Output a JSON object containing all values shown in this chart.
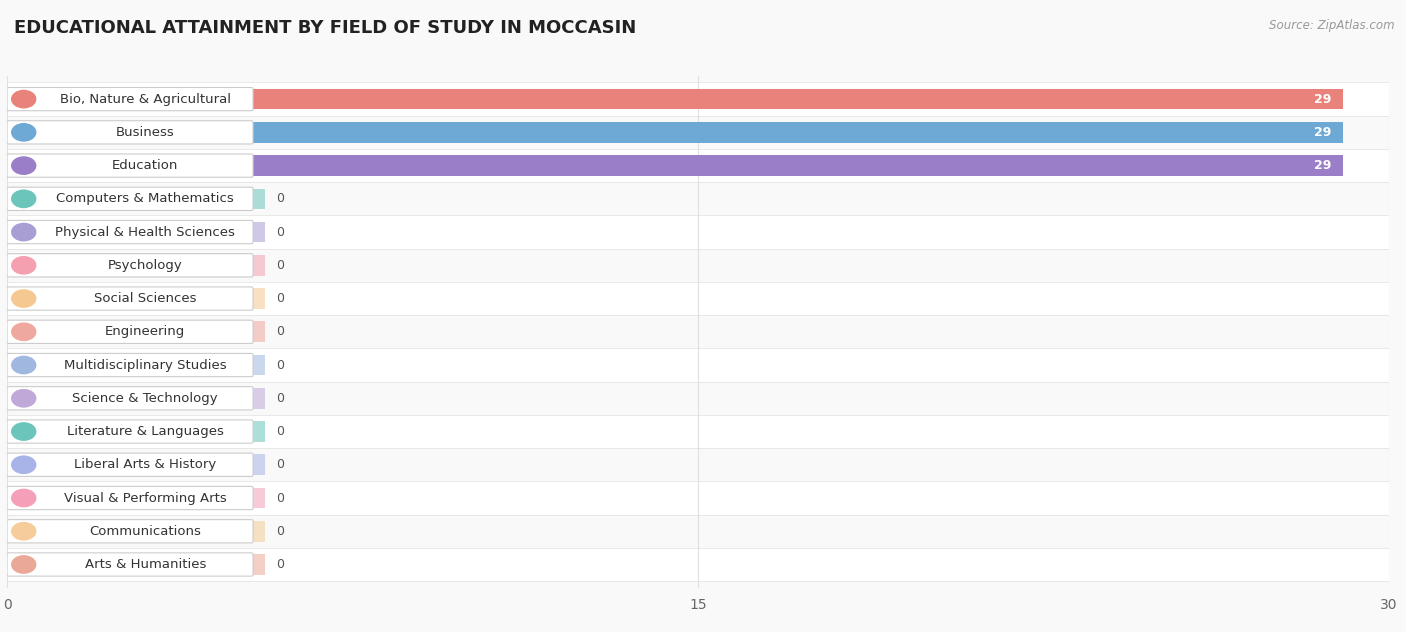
{
  "title": "EDUCATIONAL ATTAINMENT BY FIELD OF STUDY IN MOCCASIN",
  "source": "Source: ZipAtlas.com",
  "categories": [
    "Bio, Nature & Agricultural",
    "Business",
    "Education",
    "Computers & Mathematics",
    "Physical & Health Sciences",
    "Psychology",
    "Social Sciences",
    "Engineering",
    "Multidisciplinary Studies",
    "Science & Technology",
    "Literature & Languages",
    "Liberal Arts & History",
    "Visual & Performing Arts",
    "Communications",
    "Arts & Humanities"
  ],
  "values": [
    29,
    29,
    29,
    0,
    0,
    0,
    0,
    0,
    0,
    0,
    0,
    0,
    0,
    0,
    0
  ],
  "bar_colors": [
    "#E8827A",
    "#6EA8D5",
    "#9B7EC8",
    "#6BC5BB",
    "#A89ED4",
    "#F4A0B0",
    "#F5C891",
    "#EFA8A0",
    "#A0B8E0",
    "#C0A8D8",
    "#6BC5BB",
    "#A8B4E8",
    "#F4A0B8",
    "#F5CC9A",
    "#EAA898"
  ],
  "label_border_colors": [
    "#d0d0d0",
    "#d0d0d0",
    "#d0d0d0",
    "#d0d0d0",
    "#d0d0d0",
    "#d0d0d0",
    "#d0d0d0",
    "#d0d0d0",
    "#d0d0d0",
    "#d0d0d0",
    "#d0d0d0",
    "#d0d0d0",
    "#d0d0d0",
    "#d0d0d0",
    "#d0d0d0"
  ],
  "xlim": [
    0,
    30
  ],
  "xticks": [
    0,
    15,
    30
  ],
  "background_color": "#f9f9f9",
  "bar_height": 0.62,
  "title_fontsize": 13,
  "label_fontsize": 9.5,
  "value_fontsize": 9,
  "grid_color": "#e0e0e0",
  "row_alt_color": "#f0f0f0"
}
